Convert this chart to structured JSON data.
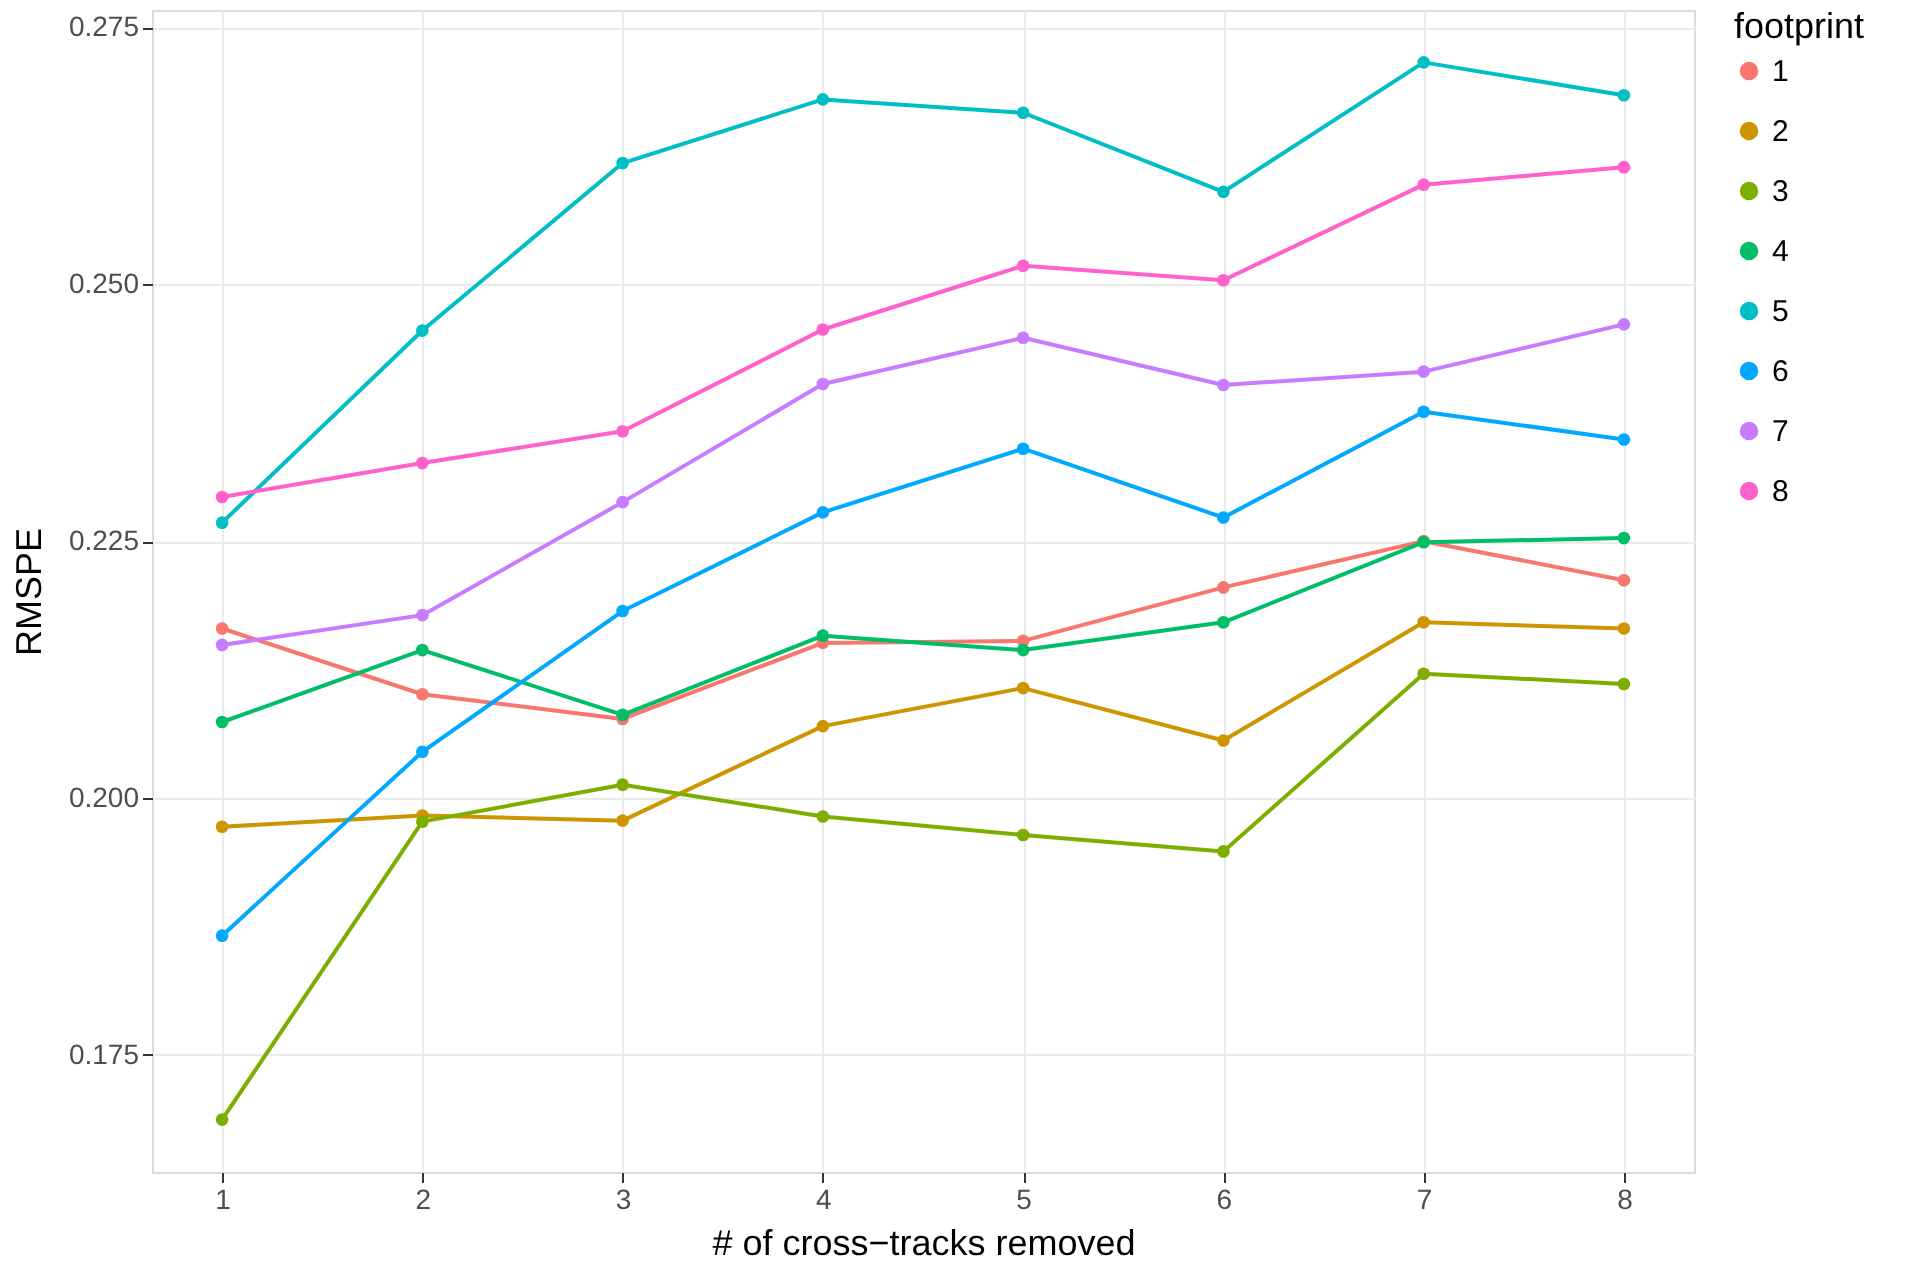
{
  "chart_data": {
    "type": "line",
    "xlabel": "# of cross−tracks removed",
    "ylabel": "RMSPE",
    "legend_title": "footprint",
    "x": [
      1,
      2,
      3,
      4,
      5,
      6,
      7,
      8
    ],
    "series": [
      {
        "name": "1",
        "color": "#f8766d",
        "values": [
          0.2165,
          0.2101,
          0.2077,
          0.2151,
          0.2153,
          0.2205,
          0.225,
          0.2212
        ]
      },
      {
        "name": "2",
        "color": "#cd9600",
        "values": [
          0.1972,
          0.1983,
          0.1978,
          0.207,
          0.2107,
          0.2056,
          0.2171,
          0.2165
        ]
      },
      {
        "name": "3",
        "color": "#7cae00",
        "values": [
          0.1687,
          0.1977,
          0.2013,
          0.1982,
          0.1964,
          0.1948,
          0.2121,
          0.2111
        ]
      },
      {
        "name": "4",
        "color": "#00be67",
        "values": [
          0.2074,
          0.2144,
          0.2081,
          0.2158,
          0.2144,
          0.2171,
          0.2249,
          0.2253
        ]
      },
      {
        "name": "5",
        "color": "#00bfc4",
        "values": [
          0.2268,
          0.2455,
          0.2618,
          0.268,
          0.2667,
          0.259,
          0.2716,
          0.2684
        ]
      },
      {
        "name": "6",
        "color": "#00a9ff",
        "values": [
          0.1866,
          0.2045,
          0.2182,
          0.2278,
          0.234,
          0.2273,
          0.2376,
          0.2349
        ]
      },
      {
        "name": "7",
        "color": "#c77cff",
        "values": [
          0.2149,
          0.2178,
          0.2288,
          0.2403,
          0.2448,
          0.2402,
          0.2415,
          0.2461
        ]
      },
      {
        "name": "8",
        "color": "#ff61cc",
        "values": [
          0.2293,
          0.2326,
          0.2357,
          0.2456,
          0.2518,
          0.2504,
          0.2597,
          0.2614
        ]
      }
    ],
    "xlim": [
      0.65,
      8.35
    ],
    "xticks": [
      1,
      2,
      3,
      4,
      5,
      6,
      7,
      8
    ],
    "ylim": [
      0.1636,
      0.2767
    ],
    "yticks": [
      {
        "value": 0.175,
        "label": "0.175"
      },
      {
        "value": 0.2,
        "label": "0.200"
      },
      {
        "value": 0.225,
        "label": "0.225"
      },
      {
        "value": 0.25,
        "label": "0.250"
      },
      {
        "value": 0.275,
        "label": "0.275"
      }
    ],
    "grid": true,
    "legend": "right",
    "marker": "circle",
    "line_style": "solid"
  }
}
